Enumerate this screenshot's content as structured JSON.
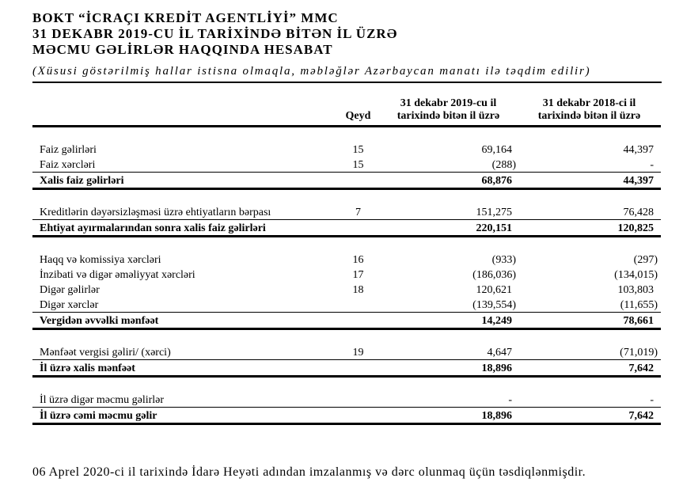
{
  "document": {
    "title_lines": [
      "BOKT “İCRAÇI KREDİT AGENTLİYİ” MMC",
      "31 DEKABR 2019-CU İL TARİXİNDƏ BİTƏN İL ÜZRƏ",
      "MƏCMU GƏLİRLƏR HAQQINDA HESABAT"
    ],
    "subtitle": "(Xüsusi göstərilmiş hallar istisna olmaqla, məbləğlər Azərbaycan manatı ilə təqdim edilir)",
    "footnote": "06 Aprel 2020-ci il tarixində İdarə Heyəti adından imzalanmış və dərc olunmaq üçün təsdiqlənmişdir."
  },
  "table": {
    "headers": {
      "note": "Qeyd",
      "col2019": "31 dekabr 2019-cu il\ntarixində bitən il üzrə",
      "col2018": "31 dekabr 2018-ci il\ntarixində bitən il üzrə"
    },
    "rows": [
      {
        "type": "spacer"
      },
      {
        "type": "item",
        "label": "Faiz gəlirləri",
        "note": "15",
        "v2019": "69,164",
        "v2018": "44,397"
      },
      {
        "type": "item",
        "label": "Faiz xərcləri",
        "note": "15",
        "v2019": "(288)",
        "v2018": "-"
      },
      {
        "type": "total",
        "label": "Xalis faiz gəlirləri",
        "note": "",
        "v2019": "68,876",
        "v2018": "44,397"
      },
      {
        "type": "spacer"
      },
      {
        "type": "item",
        "label": "Kreditlərin dəyərsizləşməsi üzrə ehtiyatların bərpası",
        "note": "7",
        "v2019": "151,275",
        "v2018": "76,428"
      },
      {
        "type": "total",
        "label": "Ehtiyat ayırmalarından sonra xalis faiz gəlirləri",
        "note": "",
        "v2019": "220,151",
        "v2018": "120,825"
      },
      {
        "type": "spacer"
      },
      {
        "type": "item",
        "label": "Haqq və komissiya xərcləri",
        "note": "16",
        "v2019": "(933)",
        "v2018": "(297)"
      },
      {
        "type": "item",
        "label": "İnzibati və digər əməliyyat xərcləri",
        "note": "17",
        "v2019": "(186,036)",
        "v2018": "(134,015)"
      },
      {
        "type": "item",
        "label": "Digər gəlirlər",
        "note": "18",
        "v2019": "120,621",
        "v2018": "103,803"
      },
      {
        "type": "item",
        "label": "Digər xərclər",
        "note": "",
        "v2019": "(139,554)",
        "v2018": "(11,655)"
      },
      {
        "type": "total",
        "label": "Vergidən əvvəlki mənfəət",
        "note": "",
        "v2019": "14,249",
        "v2018": "78,661"
      },
      {
        "type": "spacer"
      },
      {
        "type": "item",
        "label": "Mənfəət vergisi gəliri/ (xərci)",
        "note": "19",
        "v2019": "4,647",
        "v2018": "(71,019)"
      },
      {
        "type": "total",
        "label": "İl üzrə xalis mənfəət",
        "note": "",
        "v2019": "18,896",
        "v2018": "7,642"
      },
      {
        "type": "spacer"
      },
      {
        "type": "item",
        "label": "İl üzrə digər məcmu gəlirlər",
        "note": "",
        "v2019": "-",
        "v2018": "-"
      },
      {
        "type": "total",
        "label": "İl üzrə cəmi məcmu gəlir",
        "note": "",
        "v2019": "18,896",
        "v2018": "7,642"
      }
    ]
  }
}
